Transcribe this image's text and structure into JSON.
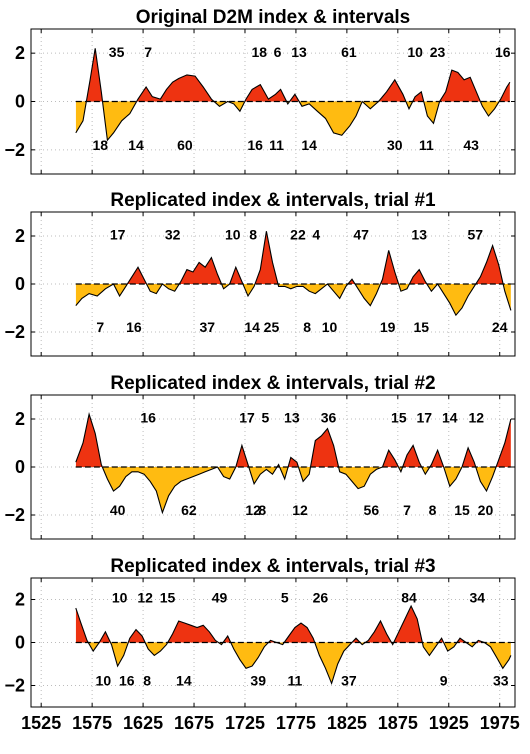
{
  "chart_data": [
    {
      "type": "area",
      "title": "Original D2M index & intervals",
      "xlim": [
        1515,
        1990
      ],
      "ylim": [
        -3,
        3
      ],
      "yticks": [
        -2,
        0,
        2
      ],
      "xticks": [
        1525,
        1575,
        1625,
        1675,
        1725,
        1775,
        1825,
        1875,
        1925,
        1975
      ],
      "grid": true,
      "fill_colors": {
        "positive": "#ee3311",
        "negative": "#ffbb11"
      },
      "x": [
        1559,
        1566,
        1573,
        1578,
        1584,
        1590,
        1596,
        1604,
        1612,
        1620,
        1628,
        1634,
        1642,
        1648,
        1654,
        1660,
        1668,
        1676,
        1684,
        1692,
        1700,
        1708,
        1714,
        1720,
        1726,
        1732,
        1740,
        1748,
        1755,
        1760,
        1767,
        1774,
        1781,
        1788,
        1796,
        1804,
        1812,
        1820,
        1828,
        1834,
        1840,
        1848,
        1856,
        1864,
        1872,
        1880,
        1886,
        1892,
        1898,
        1904,
        1910,
        1916,
        1922,
        1928,
        1934,
        1940,
        1946,
        1952,
        1958,
        1964,
        1970,
        1976,
        1982,
        1985
      ],
      "y": [
        -1.3,
        -0.8,
        0.9,
        2.2,
        0.4,
        -1.6,
        -1.3,
        -0.8,
        -0.5,
        0.1,
        0.6,
        0.2,
        0.1,
        0.5,
        0.8,
        0.95,
        1.1,
        1.05,
        0.6,
        0.1,
        -0.2,
        0.0,
        -0.1,
        -0.4,
        0.1,
        0.5,
        0.7,
        0.1,
        0.3,
        0.5,
        -0.1,
        0.3,
        -0.2,
        -0.1,
        -0.4,
        -0.7,
        -1.3,
        -1.4,
        -1.0,
        -0.6,
        0.0,
        -0.3,
        0.0,
        0.4,
        0.9,
        0.3,
        -0.3,
        0.2,
        0.4,
        -0.6,
        -0.9,
        0.0,
        0.4,
        1.3,
        1.2,
        0.9,
        1.0,
        0.4,
        -0.2,
        -0.6,
        -0.3,
        0.1,
        0.6,
        0.8
      ],
      "annotations_top": [
        {
          "x": 1599,
          "text": "35"
        },
        {
          "x": 1630,
          "text": "7"
        },
        {
          "x": 1739,
          "text": "18"
        },
        {
          "x": 1757,
          "text": "6"
        },
        {
          "x": 1778,
          "text": "13"
        },
        {
          "x": 1827,
          "text": "61"
        },
        {
          "x": 1892,
          "text": "10"
        },
        {
          "x": 1914,
          "text": "23"
        },
        {
          "x": 1978,
          "text": "16"
        }
      ],
      "annotations_bottom": [
        {
          "x": 1583,
          "text": "18"
        },
        {
          "x": 1618,
          "text": "14"
        },
        {
          "x": 1666,
          "text": "60"
        },
        {
          "x": 1735,
          "text": "16"
        },
        {
          "x": 1756,
          "text": "11"
        },
        {
          "x": 1788,
          "text": "14"
        },
        {
          "x": 1872,
          "text": "30"
        },
        {
          "x": 1903,
          "text": "11"
        },
        {
          "x": 1947,
          "text": "43"
        }
      ]
    },
    {
      "type": "area",
      "title": "Replicated index & intervals, trial #1",
      "xlim": [
        1515,
        1990
      ],
      "ylim": [
        -3,
        3
      ],
      "yticks": [
        -2,
        0,
        2
      ],
      "xticks": [
        1525,
        1575,
        1625,
        1675,
        1725,
        1775,
        1825,
        1875,
        1925,
        1975
      ],
      "grid": true,
      "fill_colors": {
        "positive": "#ee3311",
        "negative": "#ffbb11"
      },
      "x": [
        1559,
        1565,
        1572,
        1580,
        1588,
        1596,
        1602,
        1608,
        1614,
        1620,
        1626,
        1632,
        1638,
        1644,
        1650,
        1656,
        1662,
        1668,
        1674,
        1680,
        1686,
        1692,
        1698,
        1704,
        1710,
        1716,
        1722,
        1728,
        1734,
        1740,
        1746,
        1752,
        1758,
        1764,
        1770,
        1776,
        1782,
        1788,
        1794,
        1800,
        1806,
        1812,
        1818,
        1824,
        1830,
        1836,
        1842,
        1848,
        1854,
        1860,
        1866,
        1872,
        1878,
        1884,
        1890,
        1896,
        1902,
        1908,
        1914,
        1920,
        1926,
        1932,
        1938,
        1944,
        1950,
        1956,
        1962,
        1968,
        1974,
        1980,
        1986
      ],
      "y": [
        -0.9,
        -0.6,
        -0.4,
        -0.5,
        -0.2,
        0.0,
        -0.5,
        -0.1,
        0.3,
        0.7,
        0.2,
        -0.3,
        -0.4,
        0.0,
        -0.2,
        -0.3,
        0.1,
        0.6,
        0.5,
        0.9,
        0.7,
        1.1,
        0.4,
        -0.2,
        0.0,
        0.7,
        0.1,
        -0.5,
        -0.1,
        0.6,
        2.2,
        0.9,
        -0.1,
        -0.1,
        -0.2,
        -0.1,
        -0.1,
        -0.3,
        -0.4,
        -0.2,
        0.0,
        -0.3,
        -0.6,
        -0.1,
        0.2,
        -0.2,
        -0.6,
        -0.9,
        -0.4,
        0.2,
        1.4,
        0.5,
        -0.3,
        -0.2,
        0.3,
        0.6,
        0.1,
        -0.3,
        0.0,
        -0.4,
        -0.8,
        -1.3,
        -1.0,
        -0.5,
        -0.1,
        0.3,
        0.9,
        1.6,
        0.8,
        -0.3,
        -1.1
      ],
      "annotations_top": [
        {
          "x": 1600,
          "text": "17"
        },
        {
          "x": 1654,
          "text": "32"
        },
        {
          "x": 1713,
          "text": "10"
        },
        {
          "x": 1733,
          "text": "8"
        },
        {
          "x": 1777,
          "text": "22"
        },
        {
          "x": 1795,
          "text": "4"
        },
        {
          "x": 1839,
          "text": "47"
        },
        {
          "x": 1896,
          "text": "13"
        },
        {
          "x": 1951,
          "text": "57"
        }
      ],
      "annotations_bottom": [
        {
          "x": 1583,
          "text": "7"
        },
        {
          "x": 1616,
          "text": "16"
        },
        {
          "x": 1688,
          "text": "37"
        },
        {
          "x": 1732,
          "text": "14"
        },
        {
          "x": 1751,
          "text": "25"
        },
        {
          "x": 1786,
          "text": "8"
        },
        {
          "x": 1808,
          "text": "10"
        },
        {
          "x": 1865,
          "text": "19"
        },
        {
          "x": 1898,
          "text": "15"
        },
        {
          "x": 1975,
          "text": "24"
        }
      ]
    },
    {
      "type": "area",
      "title": "Replicated index & intervals, trial #2",
      "xlim": [
        1515,
        1990
      ],
      "ylim": [
        -3,
        3
      ],
      "yticks": [
        -2,
        0,
        2
      ],
      "xticks": [
        1525,
        1575,
        1625,
        1675,
        1725,
        1775,
        1825,
        1875,
        1925,
        1975
      ],
      "grid": true,
      "fill_colors": {
        "positive": "#ee3311",
        "negative": "#ffbb11"
      },
      "x": [
        1559,
        1566,
        1572,
        1578,
        1584,
        1590,
        1596,
        1602,
        1608,
        1614,
        1620,
        1626,
        1632,
        1638,
        1644,
        1650,
        1656,
        1662,
        1668,
        1674,
        1680,
        1686,
        1692,
        1698,
        1704,
        1710,
        1716,
        1722,
        1728,
        1734,
        1740,
        1746,
        1752,
        1758,
        1764,
        1770,
        1776,
        1782,
        1788,
        1794,
        1800,
        1806,
        1812,
        1818,
        1824,
        1830,
        1836,
        1842,
        1848,
        1854,
        1860,
        1866,
        1872,
        1878,
        1884,
        1890,
        1896,
        1902,
        1908,
        1914,
        1920,
        1926,
        1932,
        1938,
        1944,
        1950,
        1956,
        1962,
        1968,
        1974,
        1980,
        1986
      ],
      "y": [
        0.2,
        1.0,
        2.2,
        1.4,
        0.1,
        -0.5,
        -1.0,
        -0.8,
        -0.4,
        -0.2,
        -0.2,
        -0.3,
        -0.6,
        -1.0,
        -1.9,
        -1.2,
        -0.8,
        -0.6,
        -0.5,
        -0.4,
        -0.3,
        -0.2,
        -0.1,
        0.0,
        -0.4,
        -0.5,
        0.0,
        0.9,
        0.1,
        -0.7,
        -0.3,
        -0.1,
        -0.3,
        0.1,
        -0.5,
        0.4,
        0.2,
        -0.6,
        -0.3,
        1.1,
        1.3,
        1.6,
        0.9,
        -0.2,
        -0.3,
        -0.6,
        -0.9,
        -0.8,
        -0.3,
        -0.1,
        0.0,
        0.7,
        0.3,
        -0.2,
        0.5,
        0.9,
        0.2,
        -0.3,
        0.1,
        0.7,
        0.0,
        -0.8,
        -0.5,
        0.0,
        0.8,
        0.2,
        -0.6,
        -1.0,
        -0.4,
        0.3,
        1.0,
        2.0
      ],
      "annotations_top": [
        {
          "x": 1630,
          "text": "16"
        },
        {
          "x": 1727,
          "text": "17"
        },
        {
          "x": 1745,
          "text": "5"
        },
        {
          "x": 1771,
          "text": "13"
        },
        {
          "x": 1807,
          "text": "36"
        },
        {
          "x": 1876,
          "text": "15"
        },
        {
          "x": 1901,
          "text": "17"
        },
        {
          "x": 1926,
          "text": "14"
        },
        {
          "x": 1952,
          "text": "12"
        }
      ],
      "annotations_bottom": [
        {
          "x": 1600,
          "text": "40"
        },
        {
          "x": 1670,
          "text": "62"
        },
        {
          "x": 1733,
          "text": "12"
        },
        {
          "x": 1742,
          "text": "8"
        },
        {
          "x": 1779,
          "text": "12"
        },
        {
          "x": 1849,
          "text": "56"
        },
        {
          "x": 1884,
          "text": "7"
        },
        {
          "x": 1909,
          "text": "8"
        },
        {
          "x": 1938,
          "text": "15"
        },
        {
          "x": 1961,
          "text": "20"
        }
      ]
    },
    {
      "type": "area",
      "title": "Replicated index & intervals, trial #3",
      "xlim": [
        1515,
        1990
      ],
      "ylim": [
        -3,
        3
      ],
      "yticks": [
        -2,
        0,
        2
      ],
      "xticks": [
        1525,
        1575,
        1625,
        1675,
        1725,
        1775,
        1825,
        1875,
        1925,
        1975
      ],
      "grid": true,
      "fill_colors": {
        "positive": "#ee3311",
        "negative": "#ffbb11"
      },
      "x": [
        1559,
        1564,
        1570,
        1576,
        1582,
        1588,
        1594,
        1600,
        1606,
        1612,
        1618,
        1624,
        1630,
        1636,
        1642,
        1648,
        1654,
        1660,
        1666,
        1672,
        1678,
        1684,
        1690,
        1696,
        1702,
        1708,
        1714,
        1720,
        1726,
        1732,
        1738,
        1744,
        1750,
        1756,
        1762,
        1768,
        1774,
        1780,
        1786,
        1792,
        1798,
        1804,
        1810,
        1816,
        1822,
        1828,
        1834,
        1840,
        1846,
        1852,
        1858,
        1864,
        1870,
        1876,
        1882,
        1888,
        1894,
        1900,
        1906,
        1912,
        1918,
        1924,
        1930,
        1936,
        1942,
        1948,
        1954,
        1960,
        1966,
        1972,
        1978,
        1984,
        1986
      ],
      "y": [
        1.6,
        0.9,
        0.1,
        -0.4,
        0.0,
        0.5,
        -0.1,
        -1.1,
        -0.6,
        0.2,
        0.6,
        0.3,
        -0.3,
        -0.6,
        -0.4,
        -0.1,
        0.4,
        1.0,
        0.9,
        0.8,
        0.7,
        0.8,
        0.5,
        0.1,
        -0.1,
        0.3,
        -0.3,
        -0.8,
        -1.2,
        -1.1,
        -0.7,
        -0.2,
        0.1,
        0.0,
        -0.1,
        0.3,
        0.7,
        0.9,
        0.7,
        0.2,
        -0.6,
        -1.2,
        -1.9,
        -1.0,
        -0.4,
        -0.1,
        0.2,
        -0.1,
        0.1,
        0.5,
        1.0,
        0.4,
        -0.1,
        0.5,
        1.1,
        1.7,
        1.1,
        -0.2,
        -0.6,
        -0.2,
        0.2,
        -0.4,
        -0.2,
        0.2,
        0.0,
        -0.2,
        0.1,
        0.0,
        -0.2,
        -0.7,
        -1.2,
        -0.8,
        -0.6
      ],
      "annotations_top": [
        {
          "x": 1602,
          "text": "10"
        },
        {
          "x": 1627,
          "text": "12"
        },
        {
          "x": 1649,
          "text": "15"
        },
        {
          "x": 1700,
          "text": "49"
        },
        {
          "x": 1764,
          "text": "5"
        },
        {
          "x": 1799,
          "text": "26"
        },
        {
          "x": 1886,
          "text": "84"
        },
        {
          "x": 1953,
          "text": "34"
        }
      ],
      "annotations_bottom": [
        {
          "x": 1586,
          "text": "10"
        },
        {
          "x": 1609,
          "text": "16"
        },
        {
          "x": 1629,
          "text": "8"
        },
        {
          "x": 1665,
          "text": "14"
        },
        {
          "x": 1738,
          "text": "39"
        },
        {
          "x": 1774,
          "text": "11"
        },
        {
          "x": 1827,
          "text": "37"
        },
        {
          "x": 1920,
          "text": "9"
        },
        {
          "x": 1976,
          "text": "33"
        }
      ]
    }
  ]
}
